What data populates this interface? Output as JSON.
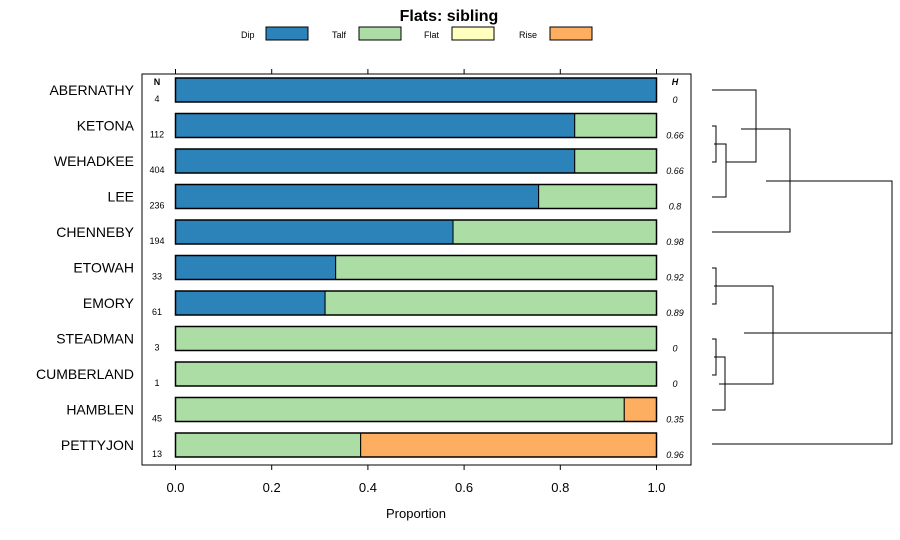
{
  "chart_data": {
    "type": "bar",
    "stacked": true,
    "orientation": "horizontal",
    "title": "Flats: sibling",
    "xlabel": "Proportion",
    "xlim": [
      0,
      1
    ],
    "xticks": [
      "0.0",
      "0.2",
      "0.4",
      "0.6",
      "0.8",
      "1.0"
    ],
    "legend": [
      {
        "name": "Dip",
        "color": "#2b83ba"
      },
      {
        "name": "Talf",
        "color": "#abdda4"
      },
      {
        "name": "Flat",
        "color": "#ffffbf"
      },
      {
        "name": "Rise",
        "color": "#fdae61"
      }
    ],
    "n_header": "N",
    "h_header": "H",
    "categories": [
      "ABERNATHY",
      "KETONA",
      "WEHADKEE",
      "LEE",
      "CHENNEBY",
      "ETOWAH",
      "EMORY",
      "STEADMAN",
      "CUMBERLAND",
      "HAMBLEN",
      "PETTYJON"
    ],
    "n": [
      "4",
      "112",
      "404",
      "236",
      "194",
      "33",
      "61",
      "3",
      "1",
      "45",
      "13"
    ],
    "h": [
      "0",
      "0.66",
      "0.66",
      "0.8",
      "0.98",
      "0.92",
      "0.89",
      "0",
      "0",
      "0.35",
      "0.96"
    ],
    "series": [
      {
        "name": "Dip",
        "values": [
          1.0,
          0.83,
          0.83,
          0.755,
          0.577,
          0.333,
          0.311,
          0,
          0,
          0,
          0
        ]
      },
      {
        "name": "Talf",
        "values": [
          0,
          0.17,
          0.17,
          0.245,
          0.423,
          0.667,
          0.689,
          1.0,
          1.0,
          0.933,
          0.385
        ]
      },
      {
        "name": "Flat",
        "values": [
          0,
          0,
          0,
          0,
          0,
          0,
          0,
          0,
          0,
          0,
          0
        ]
      },
      {
        "name": "Rise",
        "values": [
          0,
          0,
          0,
          0,
          0,
          0,
          0,
          0,
          0,
          0.067,
          0.615
        ]
      }
    ]
  }
}
